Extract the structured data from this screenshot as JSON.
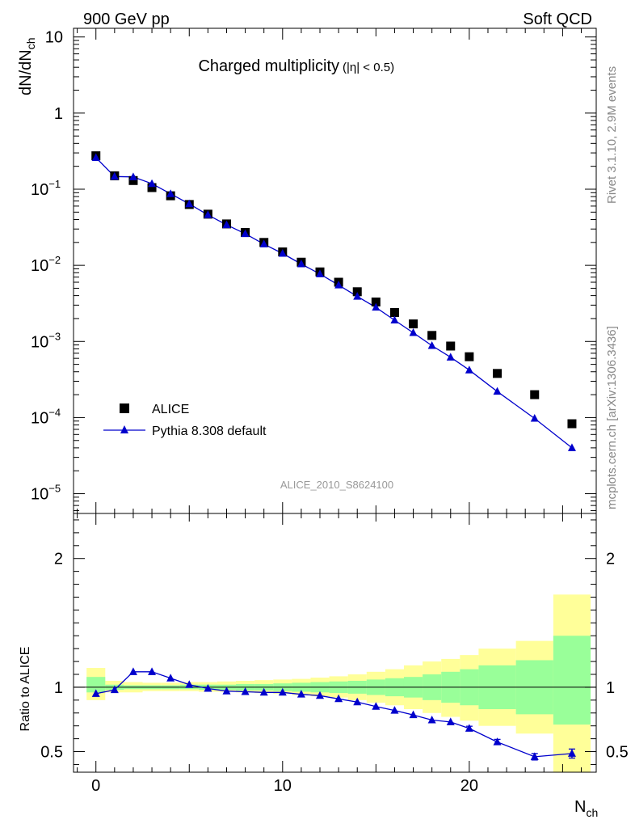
{
  "header": {
    "left_label": "900 GeV pp",
    "right_label": "Soft QCD"
  },
  "side_labels": {
    "rivet": "Rivet 3.1.10,  2.9M events",
    "mcplots": "mcplots.cern.ch [arXiv:1306.3436]"
  },
  "analysis_id": "ALICE_2010_S8624100",
  "chart_data": [
    {
      "type": "scatter",
      "id": "main",
      "title": "Charged multiplicity",
      "title_suffix": "(|η| < 0.5)",
      "ylabel": "dN/dN",
      "ylabel_sub": "ch",
      "yscale": "log",
      "ylim": [
        5.5e-06,
        13
      ],
      "xlim": [
        -1.2,
        26.8
      ],
      "y_ticks": [
        {
          "value": 10,
          "label": "10",
          "exp": ""
        },
        {
          "value": 1,
          "label": "1",
          "exp": ""
        },
        {
          "value": 0.1,
          "label": "10",
          "exp": "−1"
        },
        {
          "value": 0.01,
          "label": "10",
          "exp": "−2"
        },
        {
          "value": 0.001,
          "label": "10",
          "exp": "−3"
        },
        {
          "value": 0.0001,
          "label": "10",
          "exp": "−4"
        },
        {
          "value": 1e-05,
          "label": "10",
          "exp": "−5"
        }
      ],
      "legend_position": "bottom-left",
      "series": [
        {
          "name": "ALICE",
          "style": "black-squares",
          "color": "#000000",
          "x": [
            0,
            1,
            2,
            3,
            4,
            5,
            6,
            7,
            8,
            9,
            10,
            11,
            12,
            13,
            14,
            15,
            16,
            17,
            18,
            19,
            20,
            21.5,
            23.5,
            25.5
          ],
          "y": [
            0.275,
            0.15,
            0.13,
            0.105,
            0.082,
            0.063,
            0.047,
            0.035,
            0.027,
            0.02,
            0.015,
            0.011,
            0.0082,
            0.006,
            0.0045,
            0.0033,
            0.0024,
            0.0017,
            0.0012,
            0.00087,
            0.00063,
            0.00038,
            0.0002,
            8.3e-05
          ]
        },
        {
          "name": "Pythia 8.308 default",
          "style": "blue-triangles-line",
          "color": "#0000cc",
          "x": [
            0,
            1,
            2,
            3,
            4,
            5,
            6,
            7,
            8,
            9,
            10,
            11,
            12,
            13,
            14,
            15,
            16,
            17,
            18,
            19,
            20,
            21.5,
            23.5,
            25.5
          ],
          "y": [
            0.26,
            0.147,
            0.145,
            0.118,
            0.087,
            0.064,
            0.046,
            0.034,
            0.026,
            0.019,
            0.0143,
            0.0104,
            0.0077,
            0.0055,
            0.0039,
            0.0028,
            0.0019,
            0.0013,
            0.00088,
            0.00062,
            0.00042,
            0.00022,
            9.75e-05,
            4e-05
          ]
        }
      ]
    },
    {
      "type": "line",
      "id": "ratio",
      "ylabel": "Ratio to ALICE",
      "xlabel": "N",
      "xlabel_sub": "ch",
      "ylim": [
        0.34,
        2.35
      ],
      "xlim": [
        -1.2,
        26.8
      ],
      "x_ticks": [
        0,
        10,
        20
      ],
      "y_ticks": [
        0.5,
        1,
        2
      ],
      "reference_line": 1,
      "bands": {
        "edges": [
          -0.5,
          0.5,
          1.5,
          2.5,
          3.5,
          4.5,
          5.5,
          6.5,
          7.5,
          8.5,
          9.5,
          10.5,
          11.5,
          12.5,
          13.5,
          14.5,
          15.5,
          16.5,
          17.5,
          18.5,
          19.5,
          20.5,
          22.5,
          24.5,
          26.5
        ],
        "yellow": [
          [
            0.9,
            1.15
          ],
          [
            0.96,
            1.05
          ],
          [
            0.96,
            1.04
          ],
          [
            0.97,
            1.035
          ],
          [
            0.97,
            1.035
          ],
          [
            0.97,
            1.04
          ],
          [
            0.965,
            1.04
          ],
          [
            0.965,
            1.045
          ],
          [
            0.96,
            1.05
          ],
          [
            0.955,
            1.055
          ],
          [
            0.95,
            1.06
          ],
          [
            0.94,
            1.065
          ],
          [
            0.93,
            1.075
          ],
          [
            0.92,
            1.085
          ],
          [
            0.9,
            1.1
          ],
          [
            0.88,
            1.12
          ],
          [
            0.86,
            1.14
          ],
          [
            0.83,
            1.17
          ],
          [
            0.8,
            1.2
          ],
          [
            0.77,
            1.22
          ],
          [
            0.74,
            1.25
          ],
          [
            0.7,
            1.3
          ],
          [
            0.64,
            1.36
          ],
          [
            0.3,
            1.72
          ]
        ],
        "green": [
          [
            0.96,
            1.08
          ],
          [
            0.98,
            1.02
          ],
          [
            0.985,
            1.015
          ],
          [
            0.985,
            1.015
          ],
          [
            0.985,
            1.015
          ],
          [
            0.985,
            1.02
          ],
          [
            0.98,
            1.02
          ],
          [
            0.98,
            1.02
          ],
          [
            0.975,
            1.025
          ],
          [
            0.975,
            1.025
          ],
          [
            0.97,
            1.03
          ],
          [
            0.965,
            1.035
          ],
          [
            0.96,
            1.04
          ],
          [
            0.955,
            1.045
          ],
          [
            0.95,
            1.05
          ],
          [
            0.94,
            1.06
          ],
          [
            0.93,
            1.07
          ],
          [
            0.92,
            1.08
          ],
          [
            0.9,
            1.1
          ],
          [
            0.88,
            1.12
          ],
          [
            0.86,
            1.14
          ],
          [
            0.83,
            1.17
          ],
          [
            0.79,
            1.21
          ],
          [
            0.71,
            1.4
          ]
        ]
      },
      "series": [
        {
          "name": "Pythia 8.308 default / ALICE",
          "color": "#0000cc",
          "x": [
            0,
            1,
            2,
            3,
            4,
            5,
            6,
            7,
            8,
            9,
            10,
            11,
            12,
            13,
            14,
            15,
            16,
            17,
            18,
            19,
            20,
            21.5,
            23.5,
            25.5
          ],
          "y": [
            0.95,
            0.98,
            1.12,
            1.12,
            1.07,
            1.02,
            0.99,
            0.97,
            0.965,
            0.96,
            0.96,
            0.945,
            0.935,
            0.91,
            0.885,
            0.85,
            0.82,
            0.785,
            0.745,
            0.73,
            0.68,
            0.575,
            0.46,
            0.485
          ],
          "err": [
            0.004,
            0.004,
            0.004,
            0.004,
            0.004,
            0.004,
            0.004,
            0.004,
            0.004,
            0.005,
            0.005,
            0.006,
            0.007,
            0.008,
            0.009,
            0.01,
            0.011,
            0.012,
            0.013,
            0.015,
            0.017,
            0.02,
            0.025,
            0.035
          ]
        }
      ]
    }
  ]
}
